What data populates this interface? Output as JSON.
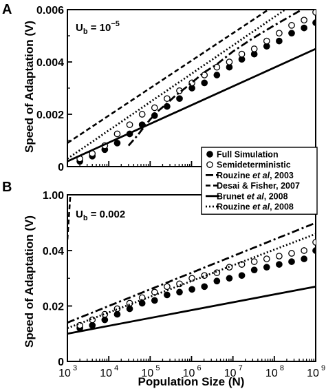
{
  "figure": {
    "xlabel": "Population Size (N)",
    "ylabel_a": "Speed of Adaptation (V)",
    "ylabel_b": "Speed of Adaptation (V)"
  },
  "chart_data": [
    {
      "panel": "A",
      "type": "line",
      "annotation": {
        "text": "U",
        "sub": "b",
        "eq": " = 10",
        "sup": "−5"
      },
      "xscale": "log",
      "xlim": [
        1000,
        1000000000
      ],
      "ylim": [
        0,
        0.006
      ],
      "ytick_labels": [
        "0",
        "0.002",
        "0.004",
        "0.006"
      ],
      "ytick_values": [
        0,
        0.002,
        0.004,
        0.006
      ],
      "xtick_labels": [],
      "series": [
        {
          "name": "Full Simulation",
          "style": "filled-circle",
          "x": [
            2000,
            4000,
            8000,
            16000,
            32000,
            64000,
            128000,
            256000,
            512000,
            1024000,
            2048000,
            4096000,
            8192000,
            16384000,
            32768000,
            65536000,
            131072000,
            262144000,
            524288000,
            1000000000
          ],
          "y": [
            0.0002,
            0.0004,
            0.00065,
            0.0009,
            0.00125,
            0.0016,
            0.00195,
            0.0023,
            0.0026,
            0.003,
            0.0032,
            0.0035,
            0.0038,
            0.0041,
            0.0043,
            0.0046,
            0.0048,
            0.0051,
            0.0053,
            0.0055
          ]
        },
        {
          "name": "Semideterministic",
          "style": "open-circle",
          "x": [
            2000,
            4000,
            8000,
            16000,
            32000,
            64000,
            128000,
            256000,
            512000,
            1024000,
            2048000,
            4096000,
            8192000,
            16384000,
            32768000,
            65536000,
            131072000,
            262144000,
            524288000,
            1000000000
          ],
          "y": [
            0.0003,
            0.0005,
            0.0008,
            0.00125,
            0.0016,
            0.002,
            0.00225,
            0.0026,
            0.0029,
            0.0032,
            0.0035,
            0.0038,
            0.004,
            0.0043,
            0.0045,
            0.0048,
            0.0051,
            0.0054,
            0.0056,
            0.0059
          ]
        },
        {
          "name": "Rouzine et al, 2003",
          "style": "dash-dot",
          "x": [
            30000,
            50000,
            70000,
            100000,
            150000,
            250000,
            400000,
            700000,
            1000000,
            2000000,
            4000000,
            10000000,
            30000000,
            100000000,
            1000000000
          ],
          "y": [
            0.0008,
            0.0012,
            0.0015,
            0.0018,
            0.0021,
            0.0024,
            0.0027,
            0.003,
            0.0032,
            0.0036,
            0.0039,
            0.0044,
            0.0049,
            0.0054,
            0.0063
          ]
        },
        {
          "name": "Desai & Fisher, 2007",
          "style": "dashed",
          "x": [
            1000,
            1000000000
          ],
          "y": [
            0.0009,
            0.0072
          ]
        },
        {
          "name": "Brunet et al, 2008",
          "style": "solid",
          "x": [
            1000,
            1000000000
          ],
          "y": [
            0.0002,
            0.0045
          ]
        },
        {
          "name": "Rouzine et al, 2008",
          "style": "dotted",
          "x": [
            1000,
            1000000000
          ],
          "y": [
            0.0003,
            0.0068
          ]
        }
      ]
    },
    {
      "panel": "B",
      "type": "line",
      "annotation": {
        "text": "U",
        "sub": "b",
        "eq": " = 0.002",
        "sup": ""
      },
      "xscale": "log",
      "xlim": [
        1000,
        1000000000
      ],
      "ylim": [
        0,
        1.0
      ],
      "ylim_note": "broken axis: 0 to 0.05 in lower part, 1.00 at top",
      "ytick_labels": [
        "0",
        "0.02",
        "0.04",
        "1.00"
      ],
      "xtick_labels": [
        "10",
        "10",
        "10",
        "10",
        "10",
        "10",
        "10"
      ],
      "xtick_exponents": [
        "3",
        "4",
        "5",
        "6",
        "7",
        "8",
        "9"
      ],
      "series": [
        {
          "name": "Full Simulation",
          "style": "filled-circle",
          "x": [
            2000,
            4000,
            8000,
            16000,
            32000,
            64000,
            128000,
            256000,
            512000,
            1024000,
            2048000,
            4096000,
            8192000,
            16384000,
            32768000,
            65536000,
            131072000,
            262144000,
            524288000,
            1000000000
          ],
          "y": [
            0.012,
            0.013,
            0.015,
            0.017,
            0.019,
            0.021,
            0.022,
            0.024,
            0.025,
            0.026,
            0.027,
            0.029,
            0.03,
            0.031,
            0.033,
            0.034,
            0.035,
            0.036,
            0.037,
            0.04
          ]
        },
        {
          "name": "Semideterministic",
          "style": "open-circle",
          "x": [
            2000,
            4000,
            8000,
            16000,
            32000,
            64000,
            128000,
            256000,
            512000,
            1024000,
            2048000,
            4096000,
            8192000,
            16384000,
            32768000,
            65536000,
            131072000,
            262144000,
            524288000,
            1000000000
          ],
          "y": [
            0.013,
            0.015,
            0.017,
            0.019,
            0.021,
            0.023,
            0.025,
            0.027,
            0.028,
            0.03,
            0.031,
            0.032,
            0.034,
            0.035,
            0.036,
            0.037,
            0.038,
            0.039,
            0.04,
            0.043
          ]
        },
        {
          "name": "Rouzine et al, 2003",
          "style": "dash-dot",
          "x": [
            1000,
            1000000000
          ],
          "y": [
            0.014,
            0.05
          ]
        },
        {
          "name": "Desai & Fisher, 2007",
          "style": "dashed",
          "x": [
            1000,
            1000000000
          ],
          "y": [
            0.044,
            1.4
          ]
        },
        {
          "name": "Brunet et al, 2008",
          "style": "solid",
          "x": [
            1000,
            1000000000
          ],
          "y": [
            0.01,
            0.027
          ]
        },
        {
          "name": "Rouzine et al, 2008",
          "style": "dotted",
          "x": [
            1000,
            1000000000
          ],
          "y": [
            0.012,
            0.046
          ]
        }
      ]
    }
  ],
  "legend": {
    "placement": "center-right",
    "items": [
      {
        "style": "filled-circle",
        "text": "Full Simulation",
        "italic": "",
        "rest": ""
      },
      {
        "style": "open-circle",
        "text": "Semideterministic",
        "italic": "",
        "rest": ""
      },
      {
        "style": "dash-dot",
        "text": "Rouzine ",
        "italic": "et al",
        "rest": ", 2003"
      },
      {
        "style": "dashed",
        "text": "Desai & Fisher, 2007",
        "italic": "",
        "rest": ""
      },
      {
        "style": "solid",
        "text": "Brunet ",
        "italic": "et al",
        "rest": ", 2008"
      },
      {
        "style": "dotted",
        "text": "Rouzine ",
        "italic": "et al",
        "rest": ", 2008"
      }
    ]
  },
  "panel_labels": [
    "A",
    "B"
  ]
}
